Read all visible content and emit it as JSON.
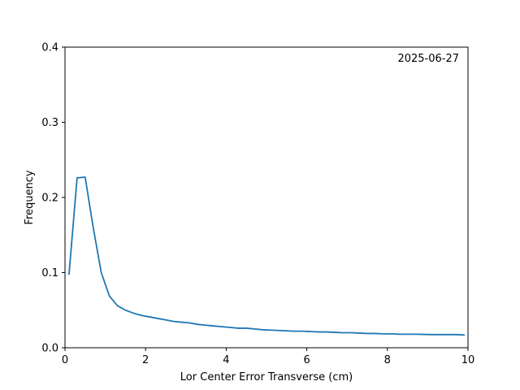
{
  "chart_data": {
    "type": "line",
    "title": "",
    "xlabel": "Lor Center Error Transverse (cm)",
    "ylabel": "Frequency",
    "xlim": [
      0,
      10
    ],
    "ylim": [
      0,
      0.4
    ],
    "xticks": [
      0,
      2,
      4,
      6,
      8,
      10
    ],
    "yticks": [
      0.0,
      0.1,
      0.2,
      0.3,
      0.4
    ],
    "xtick_labels": [
      "0",
      "2",
      "4",
      "6",
      "8",
      "10"
    ],
    "ytick_labels": [
      "0.0",
      "0.1",
      "0.2",
      "0.3",
      "0.4"
    ],
    "annotation": "2025-06-27",
    "annotation_position": "top-right",
    "grid": false,
    "legend": false,
    "series": [
      {
        "color": "#1f77b4",
        "x": [
          0.1,
          0.3,
          0.5,
          0.7,
          0.9,
          1.1,
          1.3,
          1.5,
          1.7,
          1.9,
          2.1,
          2.3,
          2.5,
          2.7,
          2.9,
          3.1,
          3.3,
          3.5,
          3.7,
          3.9,
          4.1,
          4.3,
          4.5,
          4.7,
          4.9,
          5.1,
          5.3,
          5.5,
          5.7,
          5.9,
          6.1,
          6.3,
          6.5,
          6.7,
          6.9,
          7.1,
          7.3,
          7.5,
          7.7,
          7.9,
          8.1,
          8.3,
          8.5,
          8.7,
          8.9,
          9.1,
          9.3,
          9.5,
          9.7,
          9.9
        ],
        "y": [
          0.098,
          0.226,
          0.227,
          0.16,
          0.1,
          0.069,
          0.056,
          0.05,
          0.046,
          0.043,
          0.041,
          0.039,
          0.037,
          0.035,
          0.034,
          0.033,
          0.031,
          0.03,
          0.029,
          0.028,
          0.027,
          0.026,
          0.026,
          0.025,
          0.024,
          0.0235,
          0.023,
          0.0225,
          0.022,
          0.022,
          0.0215,
          0.021,
          0.021,
          0.0205,
          0.02,
          0.02,
          0.0195,
          0.019,
          0.019,
          0.0185,
          0.0185,
          0.018,
          0.018,
          0.018,
          0.0178,
          0.0175,
          0.0175,
          0.0175,
          0.0175,
          0.017
        ]
      }
    ]
  }
}
